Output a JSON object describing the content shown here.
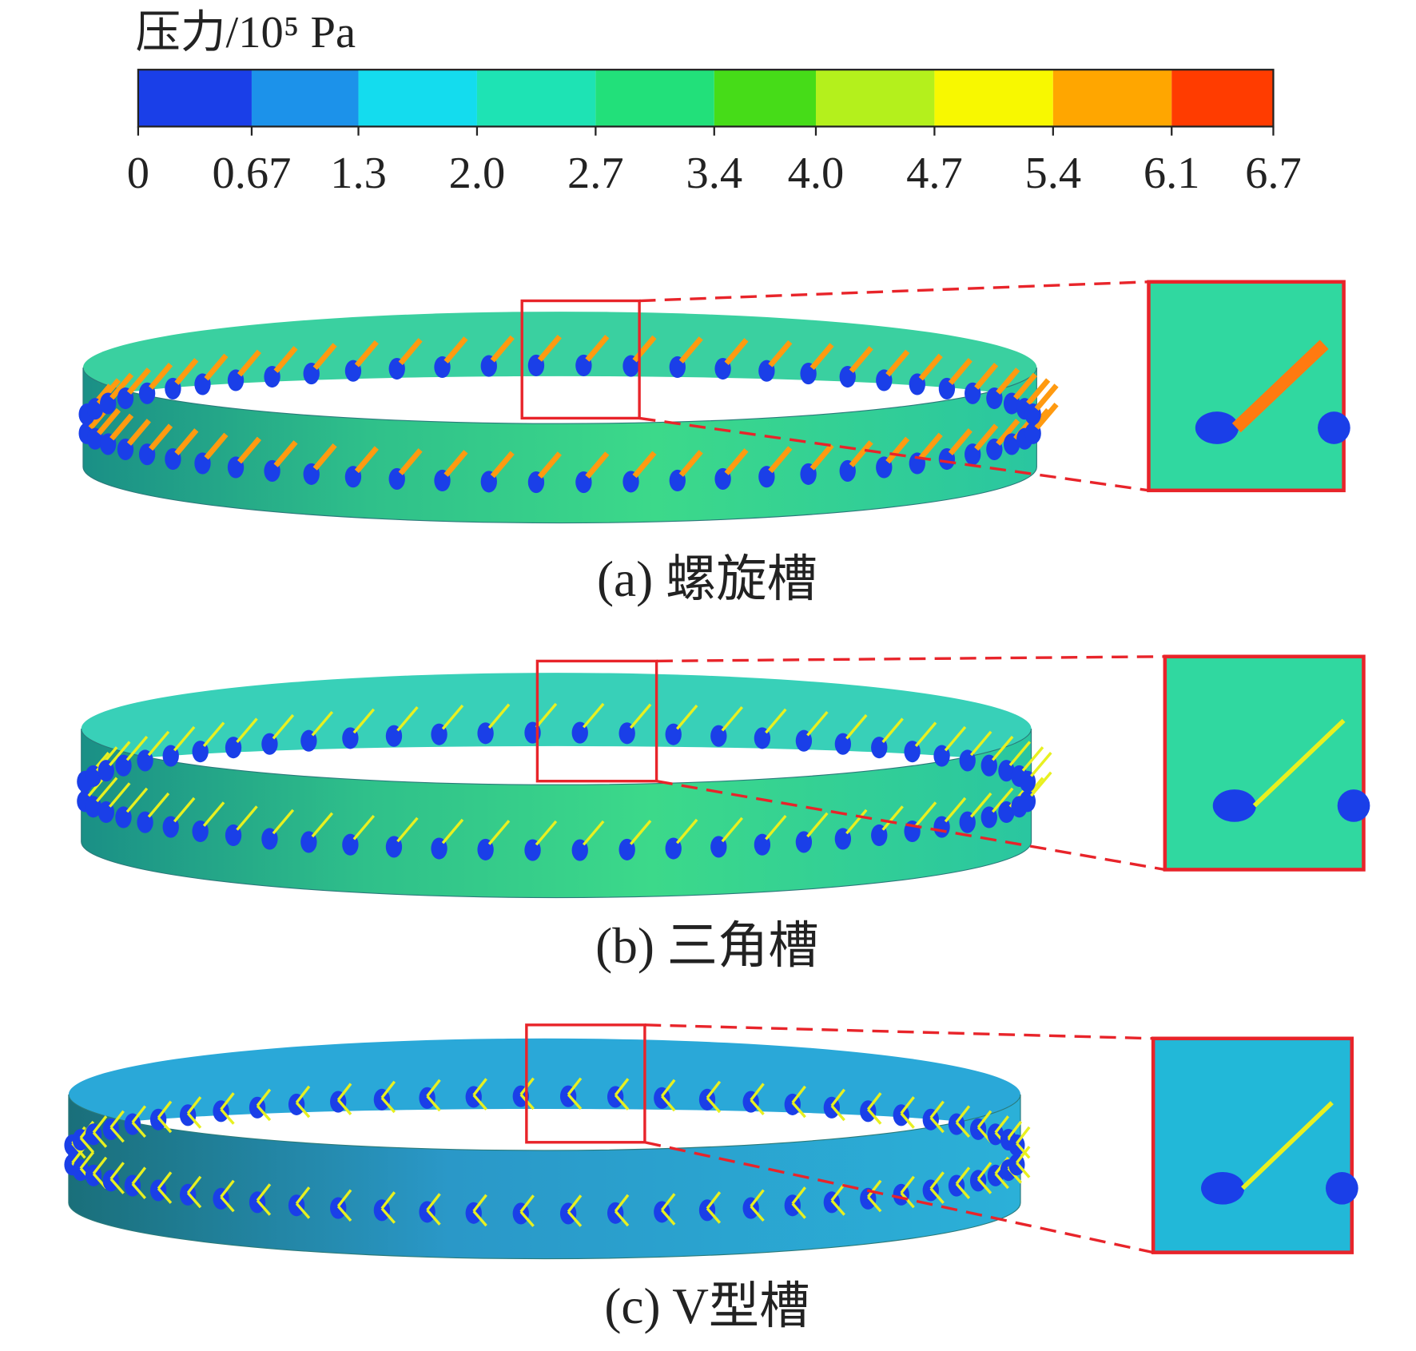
{
  "colorbar": {
    "title": "压力/10⁵ Pa",
    "ticks": [
      0,
      0.67,
      1.3,
      {
        "value": 2,
        "label": "2.0"
      },
      2.7,
      3.4,
      {
        "value": 4,
        "label": "4.0"
      },
      4.7,
      5.4,
      6.1,
      6.7
    ],
    "colors": [
      "#1a3fe8",
      "#1c92ea",
      "#14dcee",
      "#1ee3b4",
      "#22e07a",
      "#46dc18",
      "#b4f01c",
      "#f8f800",
      "#ffa600",
      "#ff3c00"
    ]
  },
  "panels": [
    {
      "caption": "(a) 螺旋槽"
    },
    {
      "caption": "(b) 三角槽"
    },
    {
      "caption": "(c) V型槽"
    }
  ]
}
